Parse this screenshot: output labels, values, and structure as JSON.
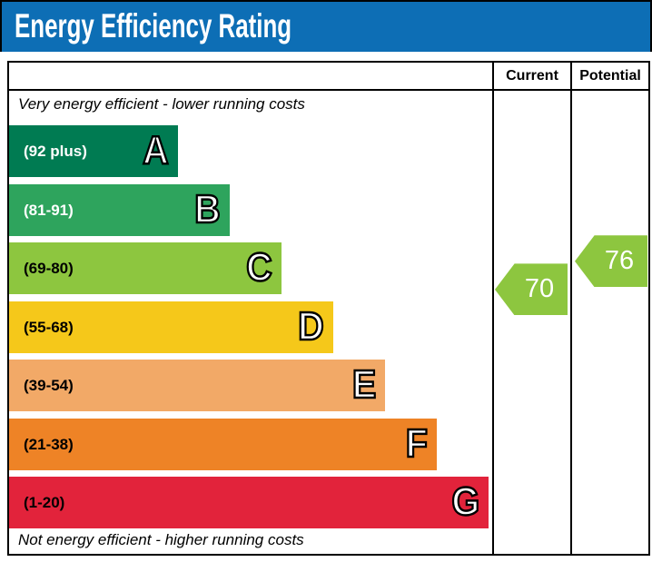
{
  "title": "Energy Efficiency Rating",
  "columns": {
    "current": "Current",
    "potential": "Potential"
  },
  "chart_data": {
    "type": "bar",
    "title": "Energy Efficiency Rating",
    "notes": {
      "top": "Very energy efficient - lower running costs",
      "bottom": "Not energy efficient - higher running costs"
    },
    "bands": [
      {
        "letter": "A",
        "range_label": "(92 plus)",
        "min": 92,
        "max": 100,
        "color": "#007B52",
        "text_color": "#ffffff"
      },
      {
        "letter": "B",
        "range_label": "(81-91)",
        "min": 81,
        "max": 91,
        "color": "#2EA45D",
        "text_color": "#ffffff"
      },
      {
        "letter": "C",
        "range_label": "(69-80)",
        "min": 69,
        "max": 80,
        "color": "#8DC63F",
        "text_color": "#000000"
      },
      {
        "letter": "D",
        "range_label": "(55-68)",
        "min": 55,
        "max": 68,
        "color": "#F5C81A",
        "text_color": "#000000"
      },
      {
        "letter": "E",
        "range_label": "(39-54)",
        "min": 39,
        "max": 54,
        "color": "#F2A967",
        "text_color": "#000000"
      },
      {
        "letter": "F",
        "range_label": "(21-38)",
        "min": 21,
        "max": 38,
        "color": "#EE8326",
        "text_color": "#000000"
      },
      {
        "letter": "G",
        "range_label": "(1-20)",
        "min": 1,
        "max": 20,
        "color": "#E2233B",
        "text_color": "#000000"
      }
    ],
    "markers": {
      "current": {
        "label": "Current",
        "value": 70,
        "band": "C",
        "color": "#8DC63F"
      },
      "potential": {
        "label": "Potential",
        "value": 76,
        "band": "C",
        "color": "#8DC63F"
      }
    },
    "axis_range": [
      1,
      100
    ],
    "legend_position": "none",
    "grid": false
  }
}
